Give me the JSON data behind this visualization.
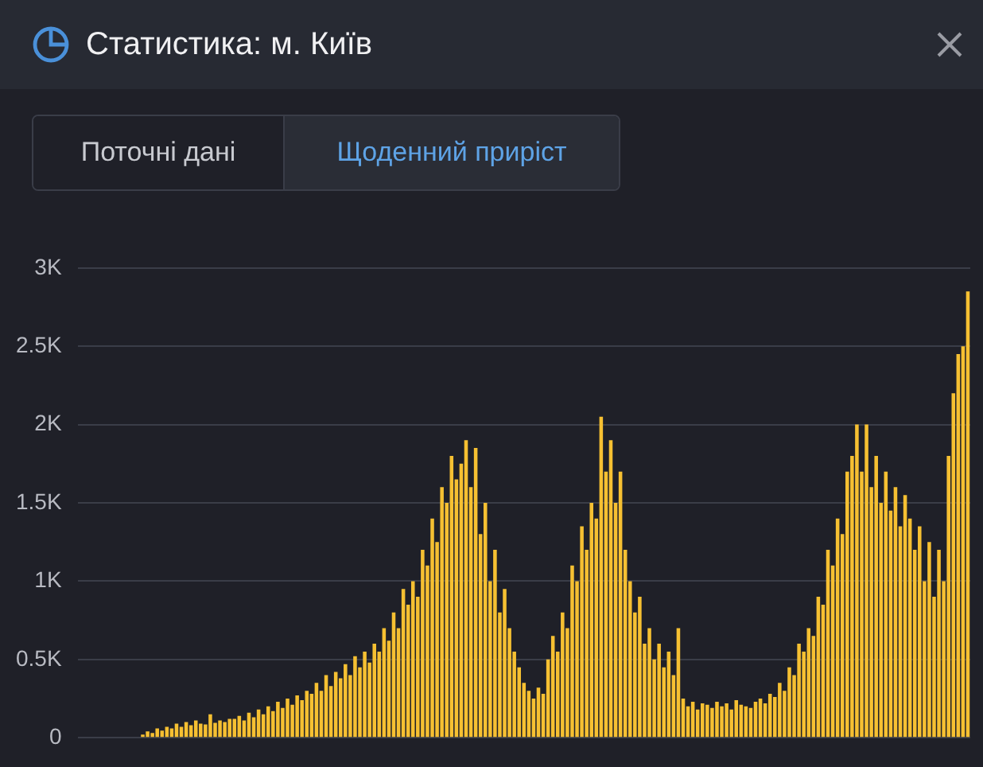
{
  "chart_data": {
    "type": "bar",
    "title": "Статистика: м. Київ",
    "annotations": [
      "Поточні дані",
      "Щоденний приріст"
    ],
    "categories": [
      null,
      null,
      null,
      null,
      null,
      null,
      null,
      null,
      null,
      null,
      null,
      null,
      null,
      null,
      null,
      null,
      null,
      null,
      null,
      null,
      null,
      null,
      null,
      null,
      null,
      null,
      null,
      null,
      null,
      null,
      null,
      null,
      null,
      null,
      null,
      null,
      null,
      null,
      null,
      null,
      null,
      null,
      null,
      null,
      null,
      null,
      null,
      null,
      null,
      null,
      null,
      null,
      null,
      null,
      null,
      null,
      null,
      null,
      null,
      null,
      null,
      null,
      null,
      null,
      null,
      null,
      null,
      null,
      null,
      null,
      null,
      null,
      null,
      null,
      null,
      null,
      null,
      null,
      null,
      null,
      null,
      null,
      null,
      null,
      null,
      null,
      null,
      null,
      null,
      null,
      null,
      null,
      null,
      null,
      null,
      null,
      null,
      null,
      null,
      null,
      null,
      null,
      null,
      null,
      null,
      null,
      null,
      null,
      null,
      null,
      null,
      null,
      null,
      null,
      null,
      null,
      null,
      null,
      null,
      null,
      null,
      null,
      null,
      null,
      null,
      null,
      null,
      null,
      null,
      null,
      null,
      null,
      null,
      null,
      null,
      null,
      null,
      null,
      null,
      null,
      null,
      null,
      null,
      null,
      null,
      null,
      null,
      null,
      null,
      null,
      null,
      null,
      null,
      null,
      null,
      null,
      null,
      null,
      null,
      null,
      null,
      null,
      null,
      null,
      null,
      null,
      null,
      null,
      null,
      null,
      null,
      null,
      null,
      null,
      null,
      null,
      null,
      null,
      null,
      null,
      null,
      null,
      null,
      null,
      null
    ],
    "values": [
      0,
      0,
      0,
      0,
      0,
      0,
      0,
      0,
      0,
      0,
      0,
      0,
      0,
      20,
      40,
      30,
      60,
      45,
      70,
      60,
      90,
      70,
      100,
      80,
      110,
      90,
      85,
      150,
      95,
      110,
      100,
      120,
      120,
      140,
      110,
      160,
      130,
      180,
      150,
      200,
      170,
      230,
      190,
      250,
      210,
      270,
      240,
      300,
      280,
      350,
      300,
      400,
      330,
      420,
      380,
      470,
      400,
      520,
      450,
      550,
      480,
      600,
      550,
      700,
      620,
      800,
      700,
      950,
      850,
      1000,
      900,
      1200,
      1100,
      1400,
      1250,
      1600,
      1500,
      1800,
      1650,
      1750,
      1900,
      1600,
      1850,
      1300,
      1500,
      1000,
      1200,
      800,
      950,
      700,
      550,
      450,
      350,
      300,
      250,
      320,
      280,
      500,
      650,
      550,
      800,
      700,
      1100,
      1000,
      1350,
      1200,
      1500,
      1400,
      2050,
      1700,
      1900,
      1500,
      1700,
      1200,
      1000,
      800,
      900,
      600,
      700,
      500,
      600,
      450,
      550,
      400,
      700,
      250,
      200,
      230,
      180,
      220,
      210,
      190,
      230,
      200,
      220,
      180,
      240,
      210,
      200,
      190,
      230,
      250,
      220,
      280,
      260,
      350,
      300,
      450,
      400,
      600,
      550,
      700,
      650,
      900,
      850,
      1200,
      1100,
      1400,
      1300,
      1700,
      1800,
      2000,
      1700,
      2000,
      1600,
      1800,
      1500,
      1700,
      1450,
      1600,
      1350,
      1550,
      1400,
      1200,
      1350,
      1000,
      1250,
      900,
      1200,
      1000,
      1800,
      2200,
      2450,
      2500,
      2850
    ],
    "color": "#f6c032",
    "ylim": [
      0,
      3000
    ],
    "yticks": [
      0,
      {
        "value": 500,
        "label": "0.5K"
      },
      {
        "value": 1000,
        "label": "1K"
      },
      {
        "value": 1500,
        "label": "1.5K"
      },
      {
        "value": 2000,
        "label": "2K"
      },
      {
        "value": 2500,
        "label": "2.5K"
      },
      {
        "value": 3000,
        "label": "3K"
      }
    ],
    "grid": "y",
    "tick_labels": "y"
  }
}
